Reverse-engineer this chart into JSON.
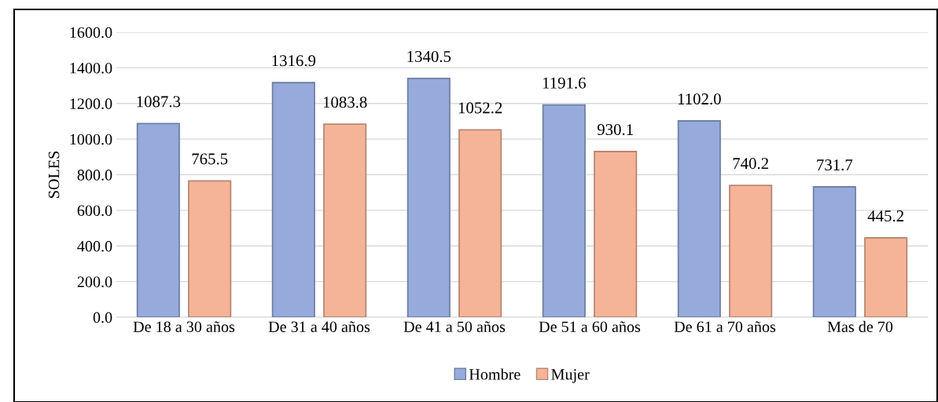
{
  "chart_data": {
    "type": "bar",
    "ylabel": "SOLES",
    "categories": [
      "De 18 a 30 años",
      "De 31 a 40 años",
      "De 41 a 50 años",
      "De 51 a 60 años",
      "De 61 a 70 años",
      "Mas de 70"
    ],
    "series": [
      {
        "name": "Hombre",
        "color": "#96aadc",
        "values": [
          1087.3,
          1316.9,
          1340.5,
          1191.6,
          1102.0,
          731.7
        ],
        "value_labels": [
          "1087.3",
          "1316.9",
          "1340.5",
          "1191.6",
          "1102.0",
          "731.7"
        ]
      },
      {
        "name": "Mujer",
        "color": "#f5b498",
        "values": [
          765.5,
          1083.8,
          1052.2,
          930.1,
          740.2,
          445.2
        ],
        "value_labels": [
          "765.5",
          "1083.8",
          "1052.2",
          "930.1",
          "740.2",
          "445.2"
        ]
      }
    ],
    "ylim": [
      0,
      1600
    ],
    "yticks": [
      {
        "value": 0,
        "label": "0.0"
      },
      {
        "value": 200,
        "label": "200.0"
      },
      {
        "value": 400,
        "label": "400.0"
      },
      {
        "value": 600,
        "label": "600.0"
      },
      {
        "value": 800,
        "label": "800.0"
      },
      {
        "value": 1000,
        "label": "1000.0"
      },
      {
        "value": 1200,
        "label": "1200.0"
      },
      {
        "value": 1400,
        "label": "1400.0"
      },
      {
        "value": 1600,
        "label": "1600.0"
      }
    ],
    "grid": "y",
    "legend": "bottom"
  }
}
